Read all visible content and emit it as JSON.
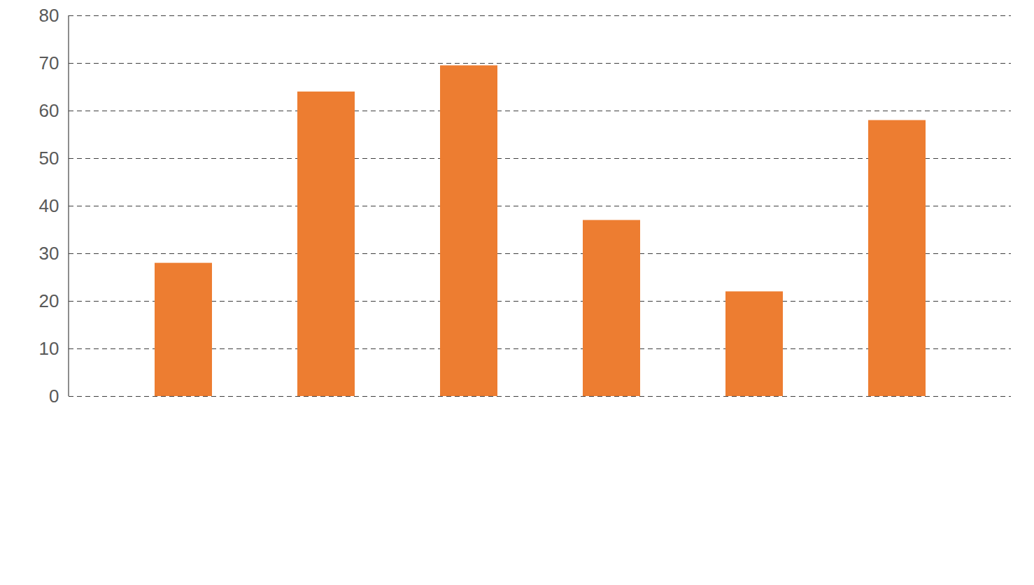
{
  "chart_data": {
    "type": "bar",
    "categories": [
      null,
      null,
      null,
      null,
      null,
      null
    ],
    "values": [
      28,
      64,
      69.5,
      37,
      22,
      58
    ],
    "color": "#ed7d31",
    "ylim": [
      0,
      80
    ],
    "yticks": [
      0,
      10,
      20,
      30,
      40,
      50,
      60,
      70,
      80
    ],
    "grid": true,
    "data_labels": false
  }
}
